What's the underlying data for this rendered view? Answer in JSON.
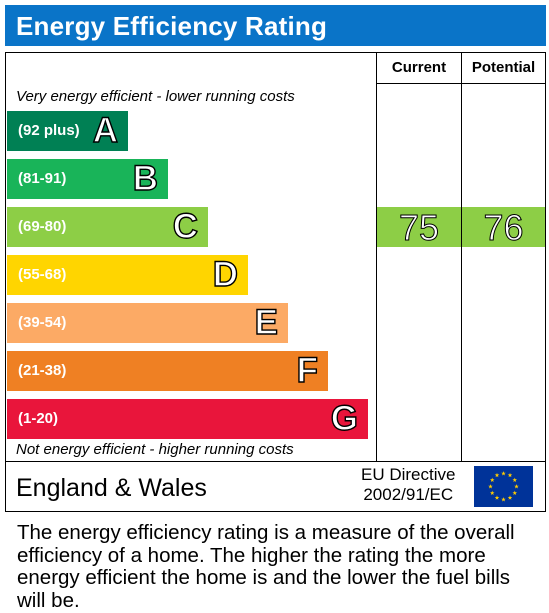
{
  "header": {
    "title": "Energy Efficiency Rating",
    "color": "#0a74c8"
  },
  "columns": {
    "current": "Current",
    "potential": "Potential"
  },
  "captions": {
    "top": "Very energy efficient - lower running costs",
    "bottom": "Not energy efficient - higher running costs"
  },
  "chart_data": {
    "type": "bar",
    "title": "Energy Efficiency Rating",
    "bands": [
      {
        "letter": "A",
        "range": "(92 plus)",
        "color": "#008054"
      },
      {
        "letter": "B",
        "range": "(81-91)",
        "color": "#19b459"
      },
      {
        "letter": "C",
        "range": "(69-80)",
        "color": "#8dce46"
      },
      {
        "letter": "D",
        "range": "(55-68)",
        "color": "#ffd500"
      },
      {
        "letter": "E",
        "range": "(39-54)",
        "color": "#fcaa65"
      },
      {
        "letter": "F",
        "range": "(21-38)",
        "color": "#ef8023"
      },
      {
        "letter": "G",
        "range": "(1-20)",
        "color": "#e9153b"
      }
    ],
    "current": {
      "value": 75,
      "band": "C"
    },
    "potential": {
      "value": 76,
      "band": "C"
    }
  },
  "footer": {
    "region": "England & Wales",
    "directive_line1": "EU Directive",
    "directive_line2": "2002/91/EC",
    "flag_color": "#003399",
    "star_color": "#ffcc00"
  },
  "footnote": "The energy efficiency rating is a measure of the overall efficiency of a home. The higher the rating the more energy efficient the home is and the lower the fuel bills will be."
}
